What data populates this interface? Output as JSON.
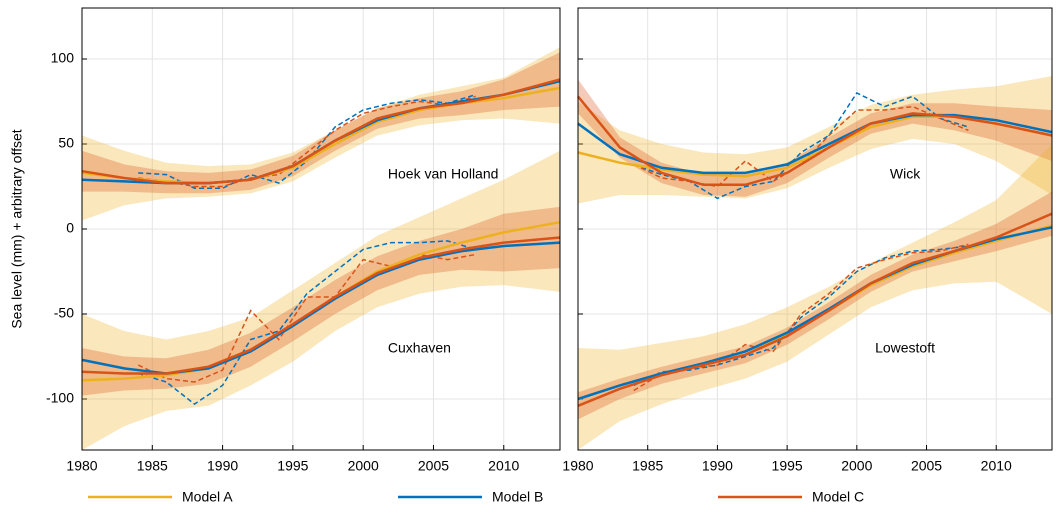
{
  "chart_data": {
    "type": "line",
    "ylabel": "Sea level (mm) + arbitrary offset",
    "xlim": [
      1980,
      2014
    ],
    "xticks": [
      1980,
      1985,
      1990,
      1995,
      2000,
      2005,
      2010
    ],
    "ylim": [
      -130,
      130
    ],
    "yticks": [
      -100,
      -50,
      0,
      50,
      100
    ],
    "grid": true,
    "models": [
      {
        "name": "Model A",
        "color": "#EDB120"
      },
      {
        "name": "Model B",
        "color": "#0072BD"
      },
      {
        "name": "Model C",
        "color": "#D95319"
      }
    ],
    "x": [
      1980,
      1983,
      1986,
      1989,
      1992,
      1995,
      1998,
      2001,
      2004,
      2007,
      2010,
      2014
    ],
    "obs_x": [
      1984,
      1986,
      1988,
      1990,
      1992,
      1994,
      1996,
      1998,
      2000,
      2002,
      2004,
      2006,
      2008
    ],
    "panels": [
      {
        "stations": [
          {
            "label": "Hoek van Holland",
            "series": [
              {
                "values": [
                  33,
                  30,
                  28,
                  27,
                  29,
                  36,
                  50,
                  63,
                  70,
                  74,
                  77,
                  83
                ],
                "lower": [
                  5,
                  14,
                  18,
                  19,
                  21,
                  28,
                  42,
                  55,
                  61,
                  64,
                  65,
                  62
                ],
                "upper": [
                  55,
                  46,
                  39,
                  37,
                  38,
                  45,
                  58,
                  71,
                  79,
                  84,
                  89,
                  107
                ]
              },
              {
                "values": [
                  29,
                  28,
                  27,
                  27,
                  29,
                  37,
                  52,
                  64,
                  71,
                  75,
                  79,
                  87
                ]
              },
              {
                "values": [
                  34,
                  30,
                  27,
                  27,
                  29,
                  37,
                  52,
                  65,
                  71,
                  74,
                  79,
                  88
                ],
                "lower": [
                  22,
                  22,
                  21,
                  21,
                  23,
                  31,
                  46,
                  59,
                  65,
                  67,
                  70,
                  72
                ],
                "upper": [
                  46,
                  38,
                  34,
                  33,
                  35,
                  43,
                  58,
                  71,
                  77,
                  81,
                  88,
                  104
                ]
              }
            ],
            "observed": [
              {
                "color": "#0072BD",
                "values": [
                  33,
                  32,
                  24,
                  24,
                  32,
                  27,
                  40,
                  60,
                  70,
                  74,
                  76,
                  74,
                  79
                ]
              },
              {
                "color": "#D95319",
                "values": [
                  30,
                  28,
                  25,
                  25,
                  30,
                  32,
                  45,
                  58,
                  68,
                  72,
                  75,
                  73,
                  78
                ]
              }
            ]
          },
          {
            "label": "Cuxhaven",
            "series": [
              {
                "values": [
                  -89,
                  -88,
                  -86,
                  -82,
                  -72,
                  -57,
                  -40,
                  -25,
                  -15,
                  -8,
                  -2,
                  4
                ],
                "lower": [
                  -130,
                  -116,
                  -107,
                  -104,
                  -92,
                  -78,
                  -60,
                  -46,
                  -38,
                  -34,
                  -33,
                  -37
                ],
                "upper": [
                  -50,
                  -60,
                  -65,
                  -60,
                  -52,
                  -36,
                  -20,
                  -4,
                  7,
                  18,
                  29,
                  46
                ]
              },
              {
                "values": [
                  -77,
                  -82,
                  -85,
                  -82,
                  -72,
                  -57,
                  -41,
                  -27,
                  -18,
                  -13,
                  -10,
                  -8
                ]
              },
              {
                "values": [
                  -84,
                  -85,
                  -85,
                  -81,
                  -71,
                  -56,
                  -40,
                  -26,
                  -17,
                  -12,
                  -8,
                  -5
                ],
                "lower": [
                  -98,
                  -95,
                  -94,
                  -91,
                  -81,
                  -66,
                  -50,
                  -36,
                  -27,
                  -24,
                  -25,
                  -23
                ],
                "upper": [
                  -70,
                  -75,
                  -76,
                  -71,
                  -61,
                  -46,
                  -30,
                  -16,
                  -7,
                  0,
                  9,
                  13
                ]
              }
            ],
            "observed": [
              {
                "color": "#0072BD",
                "values": [
                  -85,
                  -90,
                  -103,
                  -92,
                  -65,
                  -60,
                  -38,
                  -25,
                  -12,
                  -8,
                  -8,
                  -7,
                  -12
                ]
              },
              {
                "color": "#D95319",
                "values": [
                  -80,
                  -88,
                  -90,
                  -83,
                  -48,
                  -65,
                  -40,
                  -40,
                  -18,
                  -22,
                  -15,
                  -18,
                  -15
                ]
              }
            ]
          }
        ]
      },
      {
        "stations": [
          {
            "label": "Wick",
            "series": [
              {
                "values": [
                  45,
                  39,
                  35,
                  32,
                  31,
                  36,
                  48,
                  60,
                  66,
                  66,
                  62,
                  55
                ],
                "lower": [
                  15,
                  20,
                  20,
                  19,
                  18,
                  24,
                  36,
                  47,
                  53,
                  50,
                  40,
                  20
                ],
                "upper": [
                  75,
                  58,
                  50,
                  45,
                  44,
                  48,
                  60,
                  73,
                  79,
                  82,
                  84,
                  90
                ]
              },
              {
                "values": [
                  62,
                  44,
                  36,
                  33,
                  33,
                  38,
                  50,
                  62,
                  67,
                  67,
                  64,
                  57
                ]
              },
              {
                "values": [
                  78,
                  48,
                  33,
                  26,
                  26,
                  33,
                  48,
                  62,
                  68,
                  66,
                  62,
                  55
                ],
                "lower": [
                  68,
                  42,
                  27,
                  20,
                  19,
                  27,
                  42,
                  56,
                  62,
                  58,
                  52,
                  40
                ],
                "upper": [
                  88,
                  54,
                  39,
                  32,
                  33,
                  39,
                  54,
                  68,
                  74,
                  74,
                  72,
                  70
                ]
              }
            ],
            "observed": [
              {
                "color": "#0072BD",
                "values": [
                  38,
                  32,
                  28,
                  18,
                  25,
                  28,
                  45,
                  55,
                  80,
                  72,
                  78,
                  65,
                  60
                ]
              },
              {
                "color": "#D95319",
                "values": [
                  38,
                  30,
                  28,
                  25,
                  40,
                  28,
                  38,
                  55,
                  70,
                  70,
                  72,
                  65,
                  58
                ]
              }
            ]
          },
          {
            "label": "Lowestoft",
            "series": [
              {
                "values": [
                  -100,
                  -92,
                  -85,
                  -79,
                  -72,
                  -62,
                  -48,
                  -33,
                  -22,
                  -14,
                  -7,
                  2
                ],
                "lower": [
                  -130,
                  -113,
                  -103,
                  -95,
                  -88,
                  -78,
                  -62,
                  -46,
                  -36,
                  -32,
                  -31,
                  -50
                ],
                "upper": [
                  -70,
                  -71,
                  -67,
                  -63,
                  -56,
                  -46,
                  -34,
                  -20,
                  -8,
                  4,
                  17,
                  50
                ]
              },
              {
                "values": [
                  -100,
                  -92,
                  -85,
                  -79,
                  -72,
                  -61,
                  -47,
                  -32,
                  -21,
                  -13,
                  -6,
                  1
                ]
              },
              {
                "values": [
                  -104,
                  -94,
                  -86,
                  -80,
                  -74,
                  -63,
                  -48,
                  -32,
                  -20,
                  -13,
                  -5,
                  9
                ],
                "lower": [
                  -112,
                  -100,
                  -91,
                  -85,
                  -79,
                  -68,
                  -53,
                  -37,
                  -25,
                  -19,
                  -13,
                  -4
                ],
                "upper": [
                  -96,
                  -88,
                  -81,
                  -75,
                  -69,
                  -58,
                  -43,
                  -27,
                  -15,
                  -7,
                  3,
                  22
                ]
              }
            ],
            "observed": [
              {
                "color": "#0072BD",
                "values": [
                  -92,
                  -84,
                  -83,
                  -80,
                  -75,
                  -70,
                  -52,
                  -40,
                  -25,
                  -17,
                  -13,
                  -12,
                  -10
                ]
              },
              {
                "color": "#D95319",
                "values": [
                  -95,
                  -85,
                  -82,
                  -80,
                  -68,
                  -72,
                  -50,
                  -38,
                  -23,
                  -18,
                  -14,
                  -13,
                  -9
                ]
              }
            ]
          }
        ]
      }
    ]
  }
}
